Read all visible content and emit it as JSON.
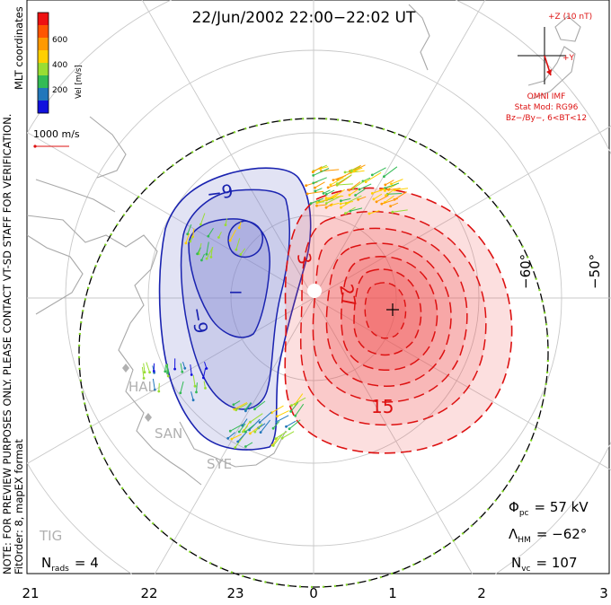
{
  "title": "22/Jun/2002 22:00−22:02 UT",
  "side_notes": {
    "line1": "NOTE: FOR PREVIEW PURPOSES ONLY. PLEASE CONTACT VT-SD STAFF FOR VERIFICATION.",
    "line2": "FitOrder: 8, mapEX format"
  },
  "coordinates_label": "MLT coordinates",
  "velocity_scale": {
    "label": "Vel [m/s]",
    "ticks": [
      "600",
      "400",
      "200"
    ],
    "colors": [
      "#ee1111",
      "#ff5500",
      "#ff9900",
      "#ffd000",
      "#99dd33",
      "#33bb55",
      "#2277bb",
      "#1111dd"
    ]
  },
  "reference_vector": "1000 m/s",
  "imf": {
    "top_label": "+Z (10 nT)",
    "y_label": "+Y",
    "source": "OMNI IMF",
    "model": "Stat Mod: RG96",
    "condition": "Bz−/By−, 6<BT<12",
    "vector_color": "#dd1111"
  },
  "latitude_labels": [
    "−60°",
    "−50°"
  ],
  "mlt_labels": [
    "21",
    "22",
    "23",
    "0",
    "1",
    "2",
    "3"
  ],
  "contour_labels": {
    "negative": [
      "−9",
      "−9",
      "−"
    ],
    "positive": [
      "3",
      "27",
      "15"
    ]
  },
  "cells": {
    "dusk_fill": "#7a7fcf",
    "dawn_fill": "#f05050",
    "negative_line": "#1a23b0",
    "positive_line": "#dd1111"
  },
  "stations": [
    "HAL",
    "SAN",
    "SYE",
    "TIG"
  ],
  "stats": {
    "phi_pc": "= 57 kV",
    "lambda_hm": "= −62°",
    "n_vc": "= 107",
    "n_rads": "= 4"
  },
  "stats_symbols": {
    "phi": "Φ",
    "phi_sub": "pc",
    "lambda": "Λ",
    "lambda_sub": "HM",
    "n": "N",
    "n_vc_sub": "vc",
    "n_rads_sub": "rads"
  }
}
